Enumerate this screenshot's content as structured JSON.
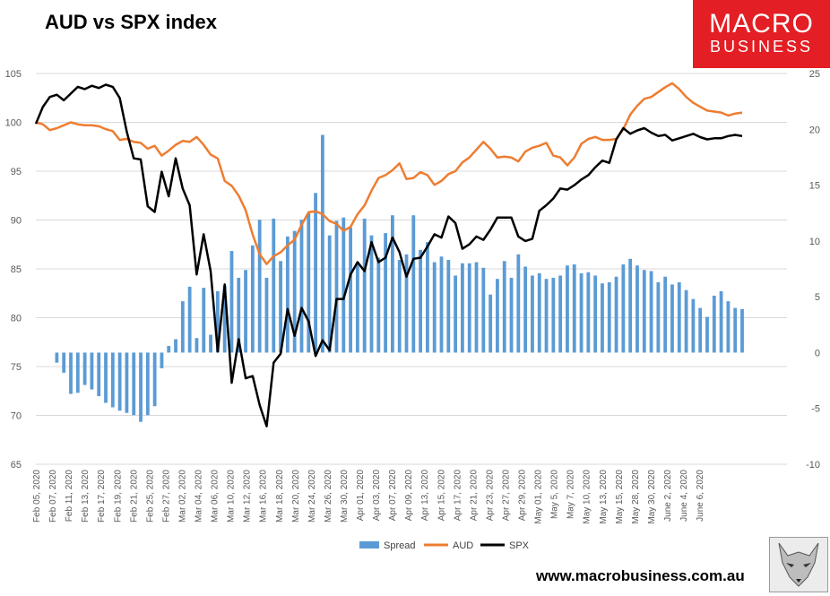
{
  "header": {
    "title": "AUD vs SPX index"
  },
  "logo": {
    "line1": "MACRO",
    "line2": "BUSINESS",
    "color": "#e31e24"
  },
  "footer": {
    "website": "www.macrobusiness.com.au"
  },
  "legend": {
    "spread": "Spread",
    "aud": "AUD",
    "spx": "SPX"
  },
  "colors": {
    "spread": "#5b9bd5",
    "aud": "#ed7d31",
    "spx": "#000000",
    "grid": "#d9d9d9"
  },
  "chart_data": {
    "type": "line",
    "title": "AUD vs SPX index",
    "legend_position": "bottom",
    "grid": true,
    "left_axis": {
      "ticks": [
        65,
        70,
        75,
        80,
        85,
        90,
        95,
        100,
        105
      ],
      "range": [
        65,
        105
      ]
    },
    "right_axis": {
      "ticks": [
        -10,
        -5,
        0,
        5,
        10,
        15,
        20,
        25
      ],
      "range": [
        -10,
        25
      ]
    },
    "x_tick_labels": [
      "Feb 05, 2020",
      "Feb 07, 2020",
      "Feb 11, 2020",
      "Feb 13, 2020",
      "Feb 17, 2020",
      "Feb 19, 2020",
      "Feb 21, 2020",
      "Feb 25, 2020",
      "Feb 27, 2020",
      "Mar 02, 2020",
      "Mar 04, 2020",
      "Mar 06, 2020",
      "Mar 10, 2020",
      "Mar 12, 2020",
      "Mar 16, 2020",
      "Mar 18, 2020",
      "Mar 20, 2020",
      "Mar 24, 2020",
      "Mar 26, 2020",
      "Mar 30, 2020",
      "Apr 01, 2020",
      "Apr 03, 2020",
      "Apr 07, 2020",
      "Apr 09, 2020",
      "Apr 13, 2020",
      "Apr 15, 2020",
      "Apr 17, 2020",
      "Apr 21, 2020",
      "Apr 23, 2020",
      "Apr 27, 2020",
      "Apr 29, 2020",
      "May 01, 2020",
      "May 5, 2020",
      "May 7, 2020",
      "May 10, 2020",
      "May 13, 2020",
      "May 15, 2020",
      "May 28, 2020",
      "May 30, 2020",
      "June 2, 2020",
      "June 4, 2020",
      "June 6, 2020"
    ],
    "series": [
      {
        "name": "Spread",
        "type": "bar",
        "axis": "right",
        "values": [
          null,
          null,
          null,
          -0.9,
          -1.8,
          -3.7,
          -3.6,
          -2.9,
          -3.3,
          -3.9,
          -4.5,
          -4.9,
          -5.2,
          -5.4,
          -5.6,
          -6.2,
          -5.6,
          -4.8,
          -1.4,
          0.6,
          1.2,
          4.6,
          5.9,
          1.3,
          5.8,
          1.6,
          5.5,
          6.0,
          9.1,
          6.7,
          7.4,
          9.6,
          11.9,
          6.7,
          12.0,
          8.2,
          10.4,
          10.9,
          11.9,
          12.5,
          14.3,
          19.5,
          10.5,
          11.8,
          12.1,
          11.2,
          8.1,
          12.0,
          10.5,
          8.5,
          10.7,
          12.3,
          8.3,
          8.8,
          12.3,
          9.2,
          9.9,
          8.1,
          8.6,
          8.3,
          6.9,
          8.0,
          8.0,
          8.1,
          7.6,
          5.2,
          6.6,
          8.2,
          6.7,
          8.8,
          7.7,
          6.9,
          7.1,
          6.6,
          6.7,
          6.9,
          7.8,
          7.9,
          7.1,
          7.2,
          6.9,
          6.2,
          6.3,
          6.8,
          7.9,
          8.4,
          7.8,
          7.4,
          7.3,
          6.3,
          6.8,
          6.1,
          6.3,
          5.6,
          4.8,
          4.0,
          3.2,
          5.1,
          5.5,
          4.6,
          4.0,
          3.9
        ]
      },
      {
        "name": "AUD",
        "type": "line",
        "axis": "left",
        "values": [
          100.0,
          99.8,
          99.2,
          99.4,
          99.7,
          100.0,
          99.8,
          99.7,
          99.7,
          99.6,
          99.3,
          99.1,
          98.2,
          98.3,
          98.0,
          97.9,
          97.3,
          97.6,
          96.6,
          97.1,
          97.7,
          98.1,
          98.0,
          98.5,
          97.7,
          96.7,
          96.3,
          94.0,
          93.5,
          92.5,
          91.0,
          88.5,
          86.5,
          85.5,
          86.3,
          86.7,
          87.4,
          88.0,
          89.5,
          90.8,
          90.9,
          90.6,
          89.9,
          89.6,
          88.9,
          89.3,
          90.6,
          91.5,
          93.0,
          94.3,
          94.6,
          95.1,
          95.8,
          94.2,
          94.3,
          94.9,
          94.6,
          93.6,
          94.0,
          94.7,
          95.0,
          95.9,
          96.4,
          97.2,
          98.0,
          97.3,
          96.4,
          96.5,
          96.4,
          96.0,
          97.0,
          97.4,
          97.6,
          97.9,
          96.6,
          96.4,
          95.6,
          96.4,
          97.8,
          98.3,
          98.5,
          98.2,
          98.2,
          98.3,
          99.3,
          100.8,
          101.7,
          102.4,
          102.6,
          103.1,
          103.6,
          104.0,
          103.4,
          102.6,
          102.0,
          101.6,
          101.2,
          101.1,
          101.0,
          100.7,
          100.9,
          101.0
        ]
      },
      {
        "name": "SPX",
        "type": "line",
        "axis": "right",
        "values": [
          20.5,
          22.0,
          22.9,
          23.1,
          22.6,
          23.2,
          23.8,
          23.6,
          23.9,
          23.7,
          24.0,
          23.8,
          22.8,
          19.8,
          17.4,
          17.3,
          13.1,
          12.6,
          16.2,
          14.0,
          17.4,
          14.7,
          13.2,
          7.0,
          10.6,
          7.3,
          0.1,
          6.1,
          -2.7,
          1.2,
          -2.3,
          -2.1,
          -4.7,
          -6.6,
          -0.9,
          -0.1,
          3.9,
          1.5,
          4.0,
          2.8,
          -0.3,
          1.1,
          0.2,
          4.8,
          4.8,
          7.0,
          8.1,
          7.3,
          9.9,
          8.1,
          8.5,
          10.3,
          9.0,
          6.8,
          8.4,
          8.5,
          9.5,
          10.6,
          10.3,
          12.2,
          11.6,
          9.3,
          9.7,
          10.4,
          10.1,
          11.0,
          12.1,
          12.1,
          12.1,
          10.4,
          10.0,
          10.2,
          12.7,
          13.2,
          13.8,
          14.7,
          14.6,
          15.0,
          15.5,
          15.9,
          16.6,
          17.2,
          17.0,
          19.1,
          20.1,
          19.6,
          19.9,
          20.1,
          19.7,
          19.4,
          19.5,
          19.0,
          19.2,
          19.4,
          19.6,
          19.3,
          19.1,
          19.2,
          19.2,
          19.4,
          19.5,
          19.4
        ]
      }
    ]
  }
}
